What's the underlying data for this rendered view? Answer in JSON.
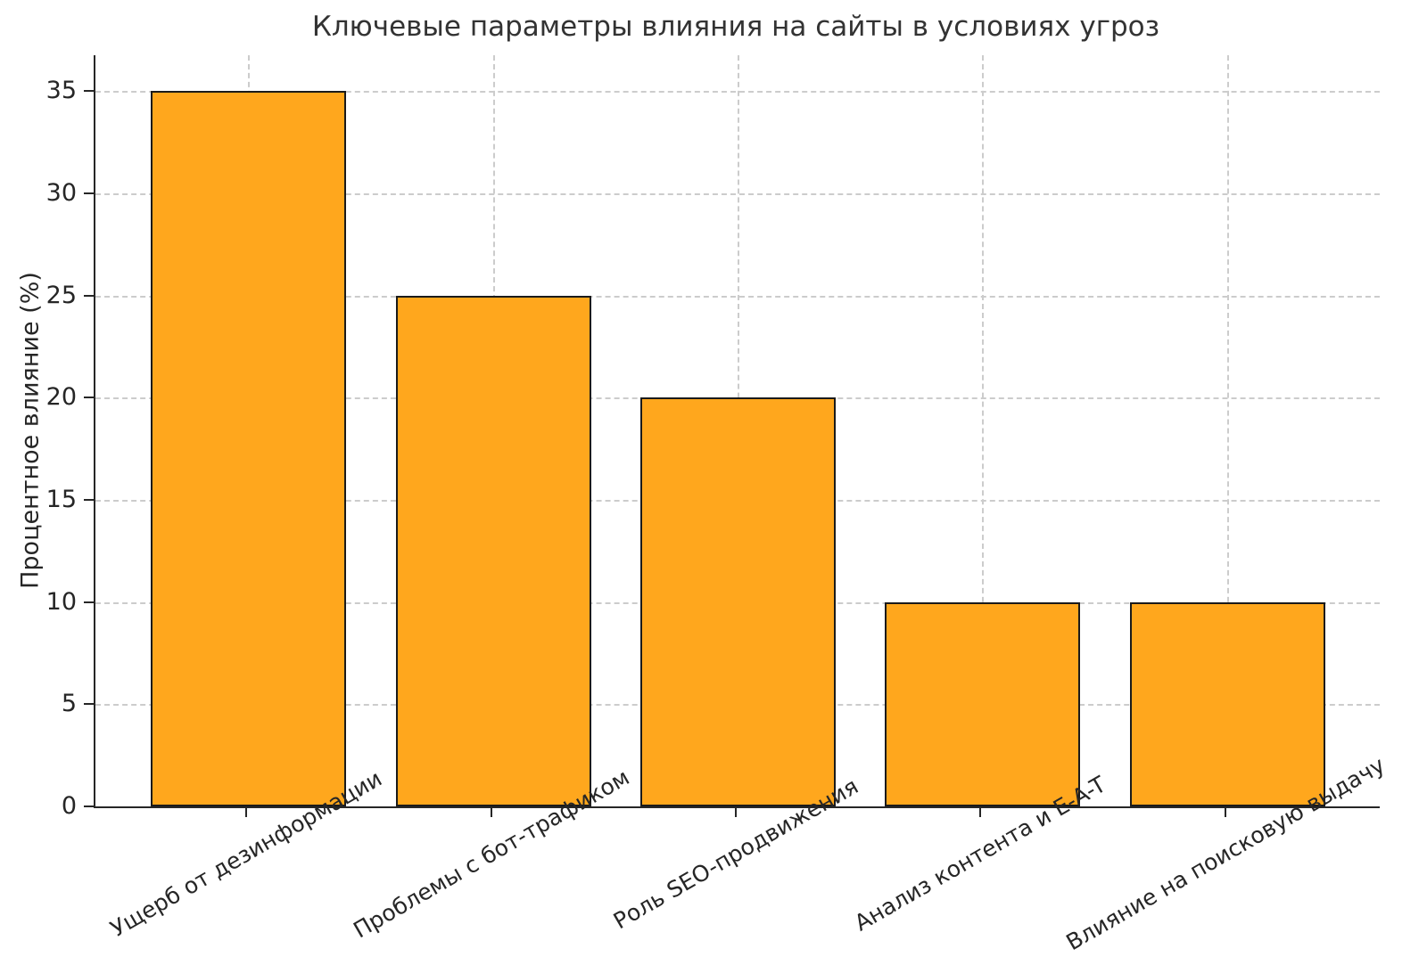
{
  "chart_data": {
    "type": "bar",
    "title": "Ключевые параметры влияния на сайты в условиях угроз",
    "xlabel": "",
    "ylabel": "Процентное влияние (%)",
    "categories": [
      "Ущерб от дезинформации",
      "Проблемы с бот-трафиком",
      "Роль SEO-продвижения",
      "Анализ контента и E-A-T",
      "Влияние на поисковую выдачу"
    ],
    "values": [
      35,
      25,
      20,
      10,
      10
    ],
    "yticks": [
      0,
      5,
      10,
      15,
      20,
      25,
      30,
      35
    ],
    "ylim": [
      0,
      36.75
    ],
    "grid": true,
    "grid_style": "dashed",
    "legend": "none",
    "bar_color": "#FFA71D",
    "bar_edge_color": "#1a1a1a",
    "grid_color": "#cccccc",
    "xtick_label_rotation": 30
  }
}
